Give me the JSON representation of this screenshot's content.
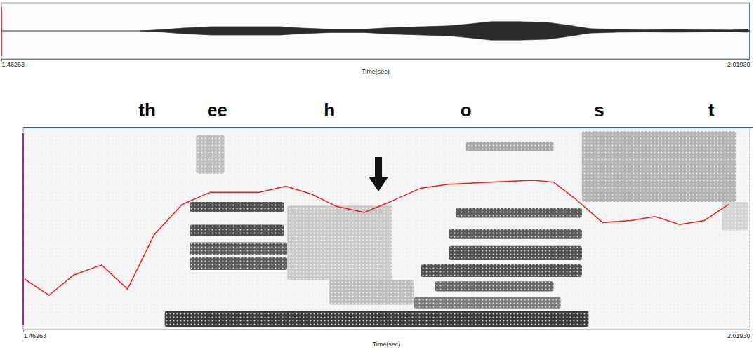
{
  "chart_data": [
    {
      "type": "waveform",
      "xlabel": "Time(sec)",
      "xlim": [
        1.46263,
        2.0193
      ],
      "xticks": [
        1.46263,
        {
          "value": 2.0193,
          "label": "2.01930"
        }
      ],
      "ylim": [
        -1,
        1
      ],
      "tick_labels": "x",
      "series": [
        {
          "color": "#2b2b2b",
          "x": [
            1.566,
            1.5843,
            1.5974,
            1.6182,
            1.6443,
            1.6705,
            1.6861,
            1.707,
            1.7331,
            1.754,
            1.7749,
            1.7958,
            1.8115,
            1.8271,
            1.848,
            1.8689,
            1.8846,
            1.9003,
            1.9211,
            1.942,
            1.9629,
            1.9838,
            2.0047,
            2.0177,
            2.019
          ],
          "values": [
            0,
            0.05,
            0.1,
            0.15,
            0.15,
            0.15,
            0.1,
            0.06,
            0.06,
            0.12,
            0.15,
            0.18,
            0.25,
            0.33,
            0.33,
            0.3,
            0.2,
            0.08,
            0.05,
            0.04,
            0.05,
            0.04,
            0.03,
            0.05,
            0
          ]
        }
      ]
    },
    {
      "type": "spectrogram",
      "xlabel": "Time(sec)",
      "xlim": [
        1.46263,
        2.0193
      ],
      "xticks": [
        1.46263,
        {
          "value": 2.0193,
          "label": "2.01930"
        }
      ],
      "ylim": [
        0,
        100
      ],
      "tick_labels": "x",
      "color": "#262626",
      "intensity_range": [
        0,
        1
      ],
      "bands": [
        {
          "t0": 1.5711,
          "t1": 1.8958,
          "f0": 1.4,
          "f1": 9.1,
          "level": 0.9
        },
        {
          "t0": 1.5902,
          "t1": 1.6623,
          "f0": 58.2,
          "f1": 63.2,
          "level": 0.8
        },
        {
          "t0": 1.5902,
          "t1": 1.6623,
          "f0": 46.3,
          "f1": 51.9,
          "level": 0.8
        },
        {
          "t0": 1.5902,
          "t1": 1.665,
          "f0": 36.8,
          "f1": 43.2,
          "level": 0.75
        },
        {
          "t0": 1.5902,
          "t1": 1.665,
          "f0": 29.5,
          "f1": 35.8,
          "level": 0.75
        },
        {
          "t0": 1.5952,
          "t1": 1.6167,
          "f0": 77.2,
          "f1": 96.5,
          "level": 0.3
        },
        {
          "t0": 1.665,
          "t1": 1.7455,
          "f0": 24.6,
          "f1": 61.4,
          "level": 0.25
        },
        {
          "t0": 1.6972,
          "t1": 1.7616,
          "f0": 12.3,
          "f1": 24.6,
          "level": 0.3
        },
        {
          "t0": 1.7941,
          "t1": 1.8907,
          "f0": 55.4,
          "f1": 60.4,
          "level": 0.75
        },
        {
          "t0": 1.7889,
          "t1": 1.8907,
          "f0": 44.9,
          "f1": 49.8,
          "level": 0.75
        },
        {
          "t0": 1.7889,
          "t1": 1.8907,
          "f0": 34.4,
          "f1": 41.4,
          "level": 0.8
        },
        {
          "t0": 1.7674,
          "t1": 1.8907,
          "f0": 26.0,
          "f1": 32.3,
          "level": 0.8
        },
        {
          "t0": 1.7781,
          "t1": 1.869,
          "f0": 18.9,
          "f1": 23.9,
          "level": 0.7
        },
        {
          "t0": 1.762,
          "t1": 1.8744,
          "f0": 10.5,
          "f1": 16.1,
          "level": 0.6
        },
        {
          "t0": 1.8019,
          "t1": 1.869,
          "f0": 88.4,
          "f1": 93.0,
          "level": 0.4
        },
        {
          "t0": 1.8907,
          "t1": 2.0087,
          "f0": 63.2,
          "f1": 98.2,
          "level": 0.35
        },
        {
          "t0": 1.9978,
          "t1": 2.0182,
          "f0": 49.1,
          "f1": 63.2,
          "level": 0.2
        }
      ],
      "series": [
        {
          "type": "line",
          "color": "#e8231f",
          "x": [
            1.4637,
            1.4825,
            1.5013,
            1.5228,
            1.5426,
            1.563,
            1.5845,
            1.606,
            1.6435,
            1.6639,
            1.6838,
            1.7026,
            1.7241,
            1.7428,
            1.767,
            1.7885,
            1.8207,
            1.8529,
            1.869,
            1.8851,
            1.9066,
            1.928,
            1.9468,
            1.9656,
            1.9844,
            2.0032
          ],
          "values": [
            25,
            17,
            27,
            32,
            20,
            47,
            62,
            68,
            68,
            71,
            67,
            61,
            58,
            63,
            70,
            72,
            73,
            74,
            73,
            65,
            53,
            54,
            56,
            52,
            54,
            62
          ]
        }
      ],
      "segments": [
        {
          "label": "th",
          "time": 1.5576
        },
        {
          "label": "ee",
          "time": 1.6113
        },
        {
          "label": "h",
          "time": 1.6972
        },
        {
          "label": "o",
          "time": 1.8019
        },
        {
          "label": "s",
          "time": 1.9039
        },
        {
          "label": "t",
          "time": 1.9898
        }
      ],
      "annotations": [
        {
          "type": "arrow",
          "x": 1.7348
        }
      ]
    }
  ]
}
